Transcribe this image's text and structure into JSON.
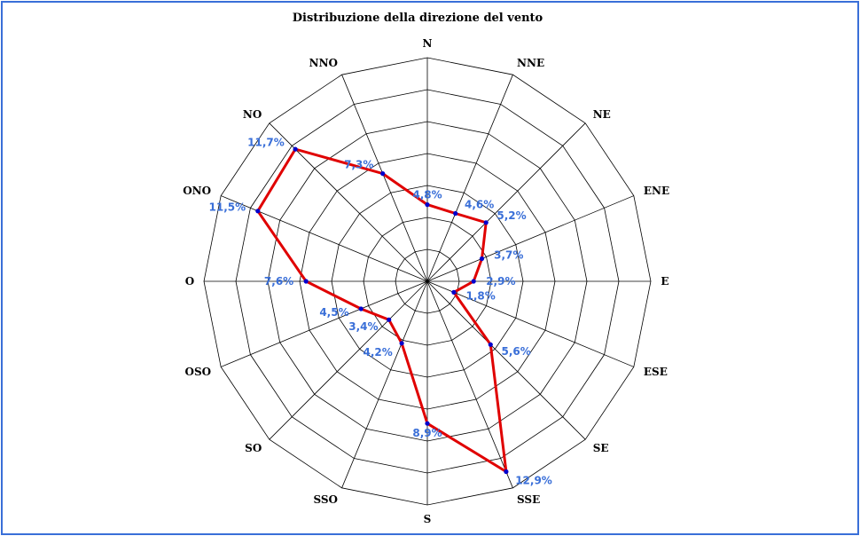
{
  "chart_data": {
    "type": "radar",
    "title": "Distribuzione della direzione del vento",
    "categories": [
      "N",
      "NNE",
      "NE",
      "ENE",
      "E",
      "ESE",
      "SE",
      "SSE",
      "S",
      "SSO",
      "SO",
      "OSO",
      "O",
      "ONO",
      "NO",
      "NNO"
    ],
    "values": [
      4.8,
      4.6,
      5.2,
      3.7,
      2.9,
      1.8,
      5.6,
      12.9,
      8.9,
      4.2,
      3.4,
      4.5,
      7.6,
      11.5,
      11.7,
      7.3
    ],
    "value_labels": [
      "4,8%",
      "4,6%",
      "5,2%",
      "3,7%",
      "2,9%",
      "1,8%",
      "5,6%",
      "12,9%",
      "8,9%",
      "4,2%",
      "3,4%",
      "4,5%",
      "7,6%",
      "11,5%",
      "11,7%",
      "7,3%"
    ],
    "rlim": [
      0,
      14
    ],
    "ring_step": 2,
    "grid": true,
    "colors": {
      "line": "#e00000",
      "marker": "#0000cc",
      "value_label": "#3a6fd8",
      "frame": "#3a6fd8",
      "grid": "#000000"
    }
  }
}
